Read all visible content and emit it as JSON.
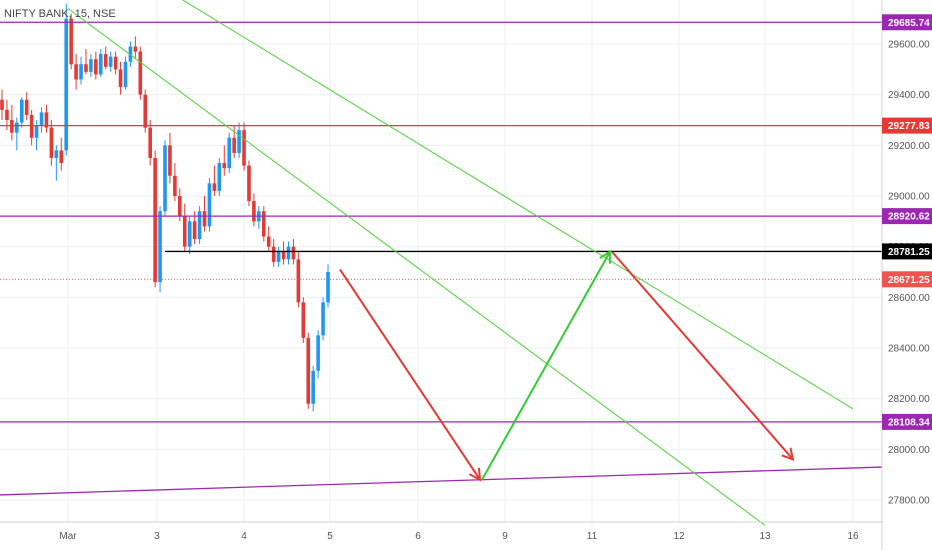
{
  "chart_data": {
    "type": "candlestick",
    "title": "NIFTY BANK, 15, NSE",
    "symbol": "NIFTY BANK",
    "interval": "15",
    "exchange": "NSE",
    "y_ticks": [
      "29600.00",
      "29400.00",
      "29200.00",
      "29000.00",
      "28800.00",
      "28600.00",
      "28400.00",
      "28200.00",
      "28000.00",
      "27800.00"
    ],
    "x_ticks": [
      "Mar",
      "3",
      "4",
      "5",
      "6",
      "9",
      "11",
      "12",
      "13",
      "16"
    ],
    "ylim": [
      27700,
      29780
    ],
    "price_levels": [
      {
        "value": 29685.74,
        "label": "29685.74",
        "color": "#9c27b0"
      },
      {
        "value": 29277.83,
        "label": "29277.83",
        "color": "#e53935"
      },
      {
        "value": 28920.62,
        "label": "28920.62",
        "color": "#9c27b0"
      },
      {
        "value": 28781.25,
        "label": "28781.25",
        "color": "#000000"
      },
      {
        "value": 28671.25,
        "label": "28671.25",
        "color": "#ef5350"
      },
      {
        "value": 28108.34,
        "label": "28108.34",
        "color": "#9c27b0"
      }
    ],
    "candles": [
      {
        "o": 29380,
        "h": 29420,
        "l": 29300,
        "c": 29340
      },
      {
        "o": 29340,
        "h": 29380,
        "l": 29260,
        "c": 29300
      },
      {
        "o": 29300,
        "h": 29360,
        "l": 29220,
        "c": 29250
      },
      {
        "o": 29250,
        "h": 29310,
        "l": 29180,
        "c": 29290
      },
      {
        "o": 29290,
        "h": 29390,
        "l": 29270,
        "c": 29380
      },
      {
        "o": 29380,
        "h": 29410,
        "l": 29300,
        "c": 29320
      },
      {
        "o": 29320,
        "h": 29340,
        "l": 29200,
        "c": 29230
      },
      {
        "o": 29230,
        "h": 29300,
        "l": 29180,
        "c": 29280
      },
      {
        "o": 29280,
        "h": 29350,
        "l": 29250,
        "c": 29330
      },
      {
        "o": 29330,
        "h": 29360,
        "l": 29250,
        "c": 29270
      },
      {
        "o": 29270,
        "h": 29300,
        "l": 29120,
        "c": 29150
      },
      {
        "o": 29150,
        "h": 29200,
        "l": 29060,
        "c": 29180
      },
      {
        "o": 29180,
        "h": 29230,
        "l": 29100,
        "c": 29130
      },
      {
        "o": 29180,
        "h": 29760,
        "l": 29160,
        "c": 29700
      },
      {
        "o": 29700,
        "h": 29720,
        "l": 29500,
        "c": 29520
      },
      {
        "o": 29520,
        "h": 29560,
        "l": 29420,
        "c": 29460
      },
      {
        "o": 29460,
        "h": 29550,
        "l": 29440,
        "c": 29520
      },
      {
        "o": 29520,
        "h": 29580,
        "l": 29480,
        "c": 29490
      },
      {
        "o": 29490,
        "h": 29560,
        "l": 29470,
        "c": 29540
      },
      {
        "o": 29540,
        "h": 29570,
        "l": 29460,
        "c": 29480
      },
      {
        "o": 29480,
        "h": 29580,
        "l": 29470,
        "c": 29560
      },
      {
        "o": 29560,
        "h": 29590,
        "l": 29500,
        "c": 29510
      },
      {
        "o": 29510,
        "h": 29570,
        "l": 29490,
        "c": 29550
      },
      {
        "o": 29550,
        "h": 29570,
        "l": 29480,
        "c": 29500
      },
      {
        "o": 29500,
        "h": 29530,
        "l": 29400,
        "c": 29430
      },
      {
        "o": 29430,
        "h": 29550,
        "l": 29420,
        "c": 29530
      },
      {
        "o": 29530,
        "h": 29610,
        "l": 29510,
        "c": 29590
      },
      {
        "o": 29590,
        "h": 29630,
        "l": 29540,
        "c": 29570
      },
      {
        "o": 29570,
        "h": 29590,
        "l": 29380,
        "c": 29400
      },
      {
        "o": 29400,
        "h": 29420,
        "l": 29250,
        "c": 29270
      },
      {
        "o": 29270,
        "h": 29300,
        "l": 29120,
        "c": 29150
      },
      {
        "o": 29150,
        "h": 29180,
        "l": 28640,
        "c": 28660
      },
      {
        "o": 28660,
        "h": 28960,
        "l": 28620,
        "c": 28940
      },
      {
        "o": 28940,
        "h": 29220,
        "l": 28920,
        "c": 29200
      },
      {
        "o": 29200,
        "h": 29250,
        "l": 29050,
        "c": 29080
      },
      {
        "o": 29080,
        "h": 29130,
        "l": 28980,
        "c": 29000
      },
      {
        "o": 29000,
        "h": 29030,
        "l": 28900,
        "c": 28920
      },
      {
        "o": 28920,
        "h": 28970,
        "l": 28780,
        "c": 28800
      },
      {
        "o": 28800,
        "h": 28920,
        "l": 28770,
        "c": 28900
      },
      {
        "o": 28900,
        "h": 28940,
        "l": 28810,
        "c": 28830
      },
      {
        "o": 28830,
        "h": 28960,
        "l": 28810,
        "c": 28940
      },
      {
        "o": 28940,
        "h": 29000,
        "l": 28860,
        "c": 28880
      },
      {
        "o": 28880,
        "h": 29070,
        "l": 28860,
        "c": 29050
      },
      {
        "o": 29050,
        "h": 29120,
        "l": 29000,
        "c": 29020
      },
      {
        "o": 29020,
        "h": 29150,
        "l": 29000,
        "c": 29130
      },
      {
        "o": 29130,
        "h": 29200,
        "l": 29080,
        "c": 29110
      },
      {
        "o": 29110,
        "h": 29250,
        "l": 29090,
        "c": 29230
      },
      {
        "o": 29230,
        "h": 29280,
        "l": 29150,
        "c": 29170
      },
      {
        "o": 29170,
        "h": 29290,
        "l": 29150,
        "c": 29260
      },
      {
        "o": 29260,
        "h": 29290,
        "l": 29100,
        "c": 29120
      },
      {
        "o": 29120,
        "h": 29140,
        "l": 28960,
        "c": 28980
      },
      {
        "o": 28980,
        "h": 29010,
        "l": 28880,
        "c": 28900
      },
      {
        "o": 28900,
        "h": 28960,
        "l": 28870,
        "c": 28940
      },
      {
        "o": 28940,
        "h": 28960,
        "l": 28820,
        "c": 28840
      },
      {
        "o": 28840,
        "h": 28880,
        "l": 28780,
        "c": 28800
      },
      {
        "o": 28800,
        "h": 28830,
        "l": 28720,
        "c": 28740
      },
      {
        "o": 28740,
        "h": 28800,
        "l": 28720,
        "c": 28780
      },
      {
        "o": 28780,
        "h": 28820,
        "l": 28730,
        "c": 28750
      },
      {
        "o": 28750,
        "h": 28820,
        "l": 28730,
        "c": 28800
      },
      {
        "o": 28800,
        "h": 28830,
        "l": 28730,
        "c": 28750
      },
      {
        "o": 28750,
        "h": 28780,
        "l": 28560,
        "c": 28580
      },
      {
        "o": 28580,
        "h": 28600,
        "l": 28420,
        "c": 28440
      },
      {
        "o": 28440,
        "h": 28460,
        "l": 28160,
        "c": 28180
      },
      {
        "o": 28180,
        "h": 28330,
        "l": 28150,
        "c": 28310
      },
      {
        "o": 28310,
        "h": 28470,
        "l": 28280,
        "c": 28450
      },
      {
        "o": 28450,
        "h": 28600,
        "l": 28430,
        "c": 28580
      },
      {
        "o": 28580,
        "h": 28730,
        "l": 28560,
        "c": 28700
      }
    ],
    "trend_lines": [
      {
        "from": [
          "2-27",
          29740
        ],
        "to": [
          "3-13",
          27700
        ],
        "color": "#4cd137"
      },
      {
        "from": [
          "2-27",
          30050
        ],
        "to": [
          "3-16",
          28160
        ],
        "color": "#4cd137"
      }
    ],
    "projection": [
      {
        "from": [
          "3-5",
          28710
        ],
        "to": [
          "3-6",
          27880
        ],
        "color": "#e53935"
      },
      {
        "from": [
          "3-6",
          27880
        ],
        "to": [
          "3-11",
          28780
        ],
        "color": "#33cc33"
      },
      {
        "from": [
          "3-11",
          28780
        ],
        "to": [
          "3-13",
          27960
        ],
        "color": "#e53935"
      }
    ],
    "support_line": {
      "from": 27820,
      "to": 27930,
      "color": "#9c27b0"
    }
  }
}
